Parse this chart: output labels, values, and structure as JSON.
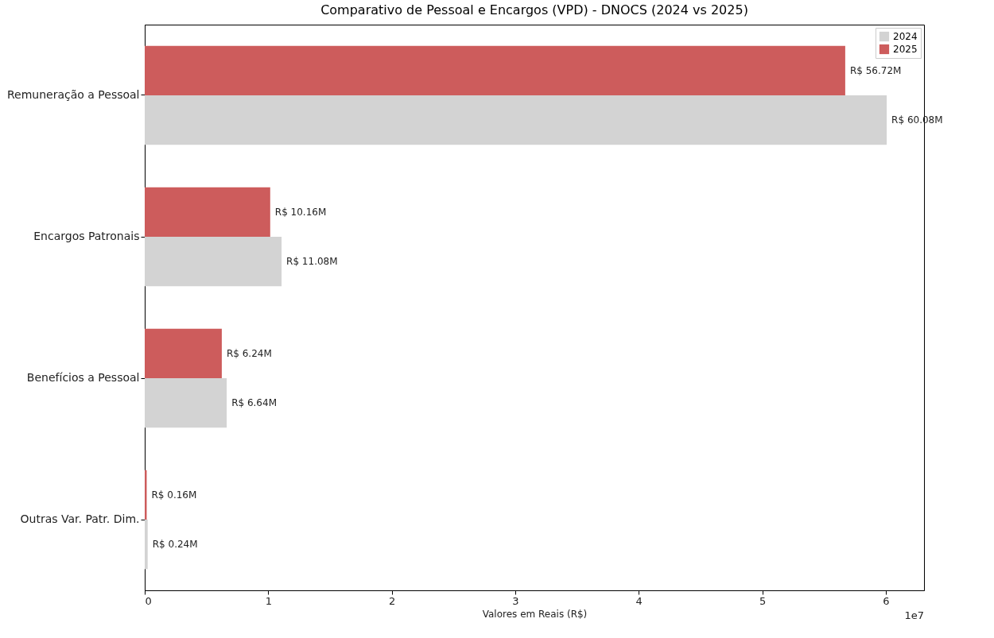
{
  "chart_data": {
    "type": "bar",
    "orientation": "horizontal",
    "title": "Comparativo de Pessoal e Encargos (VPD) - DNOCS (2024 vs 2025)",
    "xlabel": "Valores em Reais (R$)",
    "categories": [
      "Remuneração a Pessoal",
      "Encargos Patronais",
      "Benefícios a Pessoal",
      "Outras Var. Patr. Dim."
    ],
    "series": [
      {
        "name": "2024",
        "color": "#d3d3d3",
        "values": [
          6.008,
          1.108,
          0.664,
          0.024
        ],
        "value_labels": [
          "R$ 60.08M",
          "R$ 11.08M",
          "R$ 6.64M",
          "R$ 0.24M"
        ]
      },
      {
        "name": "2025",
        "color": "#cd5c5c",
        "values": [
          5.672,
          1.016,
          0.624,
          0.016
        ],
        "value_labels": [
          "R$ 56.72M",
          "R$ 10.16M",
          "R$ 6.24M",
          "R$ 0.16M"
        ]
      }
    ],
    "xlim": [
      0,
      6.31
    ],
    "xticks": [
      0,
      1,
      2,
      3,
      4,
      5,
      6
    ],
    "annotations": [
      "1e7"
    ],
    "grid": false,
    "legend": "top right"
  }
}
